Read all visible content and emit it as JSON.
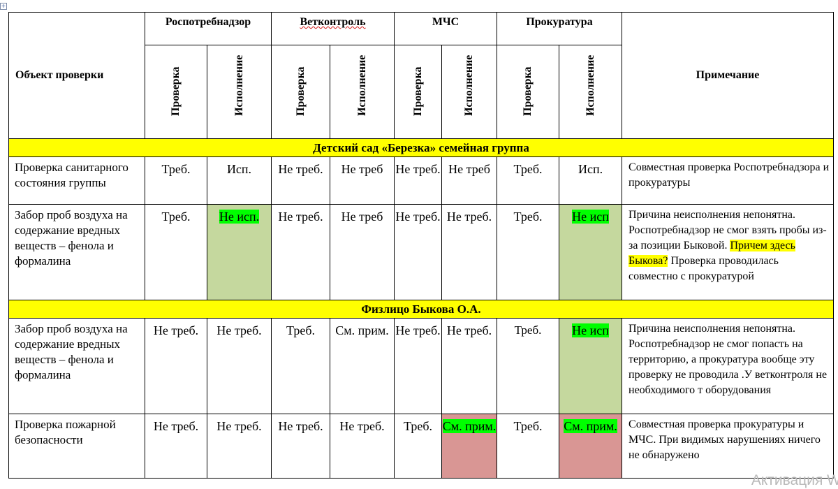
{
  "header": {
    "object_label": "Объект проверки",
    "note_label": "Примечание",
    "agencies": [
      "Роспотребнадзор",
      "Ветконтроль",
      "МЧС",
      "Прокуратура"
    ],
    "sub_check": "Проверка",
    "sub_exec": "Исполнение"
  },
  "sections": [
    {
      "title": "Детский сад «Березка» семейная группа",
      "rows": [
        {
          "object": "Проверка санитарного состояния группы",
          "cells": [
            "Треб.",
            "Исп.",
            "Не треб.",
            "Не треб",
            "Не треб.",
            "Не треб",
            "Треб.",
            "Исп."
          ],
          "note": "Совместная проверка Роспотребнадзора и прокуратуры"
        },
        {
          "object": "Забор проб воздуха на содержание вредных веществ – фенола и формалина",
          "cells": [
            "Треб.",
            "Не исп.",
            "Не треб.",
            "Не треб",
            "Не треб.",
            "Не треб.",
            "Треб.",
            "Не исп"
          ],
          "note_part1": "Причина неисполнения непонятна. Роспотребнадзор не смог взять пробы из-за позиции Быковой. ",
          "note_highlight": "Причем здесь Быкова?",
          "note_part2": " Проверка проводилась совместно с прокуратурой"
        }
      ]
    },
    {
      "title": "Физлицо Быкова  О.А.",
      "rows": [
        {
          "object": "Забор проб воздуха на содержание вредных веществ – фенола и формалина",
          "cells": [
            "Не треб.",
            "Не треб.",
            "Треб.",
            "См. прим.",
            "Не треб.",
            "Не треб.",
            "Треб.",
            "Не исп"
          ],
          "note": "Причина неисполнения непонятна. Роспотребнадзор не смог попасть на территорию, а прокуратура вообще эту проверку не проводила .У ветконтроля не необходимого т оборудования"
        },
        {
          "object": "Проверка пожарной безопасности",
          "cells": [
            "Не треб.",
            "Не треб.",
            "Не треб.",
            "Не треб.",
            "Треб.",
            "См. прим.",
            "Треб.",
            "См. прим."
          ],
          "note": "Совместная проверка прокуратуры и МЧС. При видимых нарушениях ничего не обнаружено"
        }
      ]
    }
  ],
  "watermark": "Активация W",
  "colors": {
    "section_bg": "#ffff00",
    "green_cell": "#c5d89e",
    "red_cell": "#d99694",
    "green_highlight": "#00ff00",
    "yellow_highlight": "#ffff00"
  }
}
